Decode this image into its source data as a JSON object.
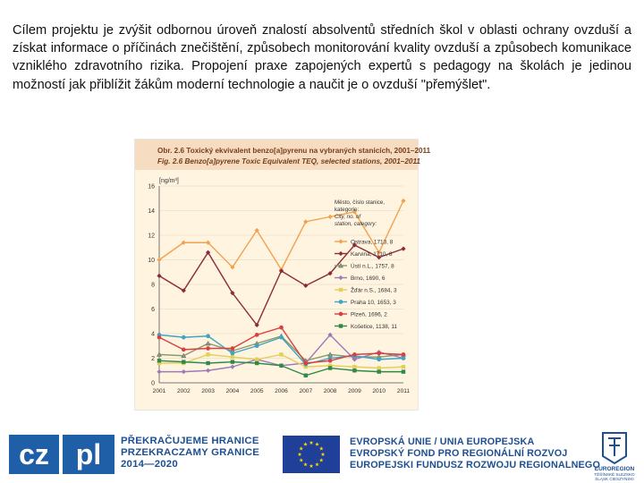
{
  "intro_text": "Cílem projektu je zvýšit odbornou úroveň znalostí absolventů středních škol v oblasti ochrany ovzduší a získat informace o příčinách znečištění, způsobech monitorování kvality ovzduší a způsobech komunikace vzniklého zdravotního rizika. Propojení praxe zapojených expertů s pedagogy na školách je jedinou možností jak přiblížit žákům moderní technologie a naučit je o ovzduší \"přemýšlet\".",
  "colors": {
    "chart_bg": "#fff4e0",
    "header_bg": "#f6dcc1",
    "title": "#7a3d1a"
  },
  "chart_data": {
    "type": "line",
    "title": "Obr. 2.6 Toxický ekvivalent benzo[a]pyrenu na vybraných stanicích, 2001–2011",
    "subtitle": "Fig. 2.6 Benzo[a]pyrene Toxic Equivalent TEQ, selected stations, 2001–2011",
    "ylabel": "[ng/m³]",
    "xlabel": "",
    "ylim": [
      0,
      16
    ],
    "yticks": [
      0,
      2,
      4,
      6,
      8,
      10,
      12,
      14,
      16
    ],
    "x": [
      "2001",
      "2002",
      "2003",
      "2004",
      "2005",
      "2006",
      "2007",
      "2008",
      "2009",
      "2010",
      "2011"
    ],
    "legend_title": "Město, číslo stanice, kategorie: City, no. of station, category:",
    "legend_position": "right",
    "series": [
      {
        "name": "Ostrava, 1713, 8",
        "color": "#f0a250",
        "marker": "diamond",
        "values": [
          10.0,
          11.4,
          11.4,
          9.4,
          12.4,
          9.2,
          13.1,
          13.5,
          13.9,
          10.6,
          14.8
        ]
      },
      {
        "name": "Karviná, 1710, 8",
        "color": "#8b2a3a",
        "marker": "diamond",
        "values": [
          8.7,
          7.5,
          10.6,
          7.3,
          4.7,
          9.1,
          7.9,
          8.9,
          11.2,
          10.2,
          10.9
        ]
      },
      {
        "name": "Ústí n.L., 1757, 8",
        "color": "#8a9a6a",
        "marker": "triangle",
        "values": [
          2.3,
          2.2,
          3.2,
          2.6,
          3.2,
          3.8,
          1.8,
          2.3,
          2.1,
          2.1,
          2.3
        ]
      },
      {
        "name": "Brno, 1690, 6",
        "color": "#9a7ab8",
        "marker": "diamond",
        "values": [
          0.9,
          0.9,
          1.0,
          1.3,
          1.9,
          1.4,
          1.6,
          3.9,
          1.9,
          2.5,
          2.0
        ]
      },
      {
        "name": "Žďár n.S., 1684, 3",
        "color": "#e3cf5a",
        "marker": "square",
        "values": [
          1.6,
          1.6,
          2.3,
          2.1,
          1.9,
          2.3,
          1.3,
          1.4,
          1.3,
          1.2,
          1.3
        ]
      },
      {
        "name": "Praha 10, 1653, 3",
        "color": "#3fa3c4",
        "marker": "circle",
        "values": [
          3.9,
          3.7,
          3.8,
          2.4,
          3.0,
          3.7,
          1.5,
          2.0,
          2.2,
          1.9,
          2.0
        ]
      },
      {
        "name": "Plzeň, 1696, 2",
        "color": "#d94040",
        "marker": "circle",
        "values": [
          3.7,
          2.7,
          2.8,
          2.8,
          3.9,
          4.5,
          1.6,
          1.8,
          2.3,
          2.4,
          2.3
        ]
      },
      {
        "name": "Košetice, 1138, 11",
        "color": "#2f8a4a",
        "marker": "square",
        "values": [
          1.8,
          1.7,
          1.6,
          1.7,
          1.6,
          1.4,
          0.6,
          1.2,
          1.0,
          0.9,
          0.9
        ]
      }
    ]
  },
  "footer": {
    "cz_logo_text": "cz pl",
    "program_line1": "PŘEKRAČUJEME HRANICE",
    "program_line2": "PRZEKRACZAMY GRANICE",
    "program_line3": "2014—2020",
    "eu_line1": "EVROPSKÁ UNIE / UNIA EUROPEJSKA",
    "eu_line2": "EVROPSKÝ FOND PRO REGIONÁLNÍ ROZVOJ",
    "eu_line3": "EUROPEJSKI FUNDUSZ ROZWOJU REGIONALNEGO",
    "euroregion_line1": "EUROREGION",
    "euroregion_line2": "TĚŠÍNSKÉ SLEZSKO",
    "euroregion_line3": "ŚLĄSK CIESZYŃSKI"
  }
}
